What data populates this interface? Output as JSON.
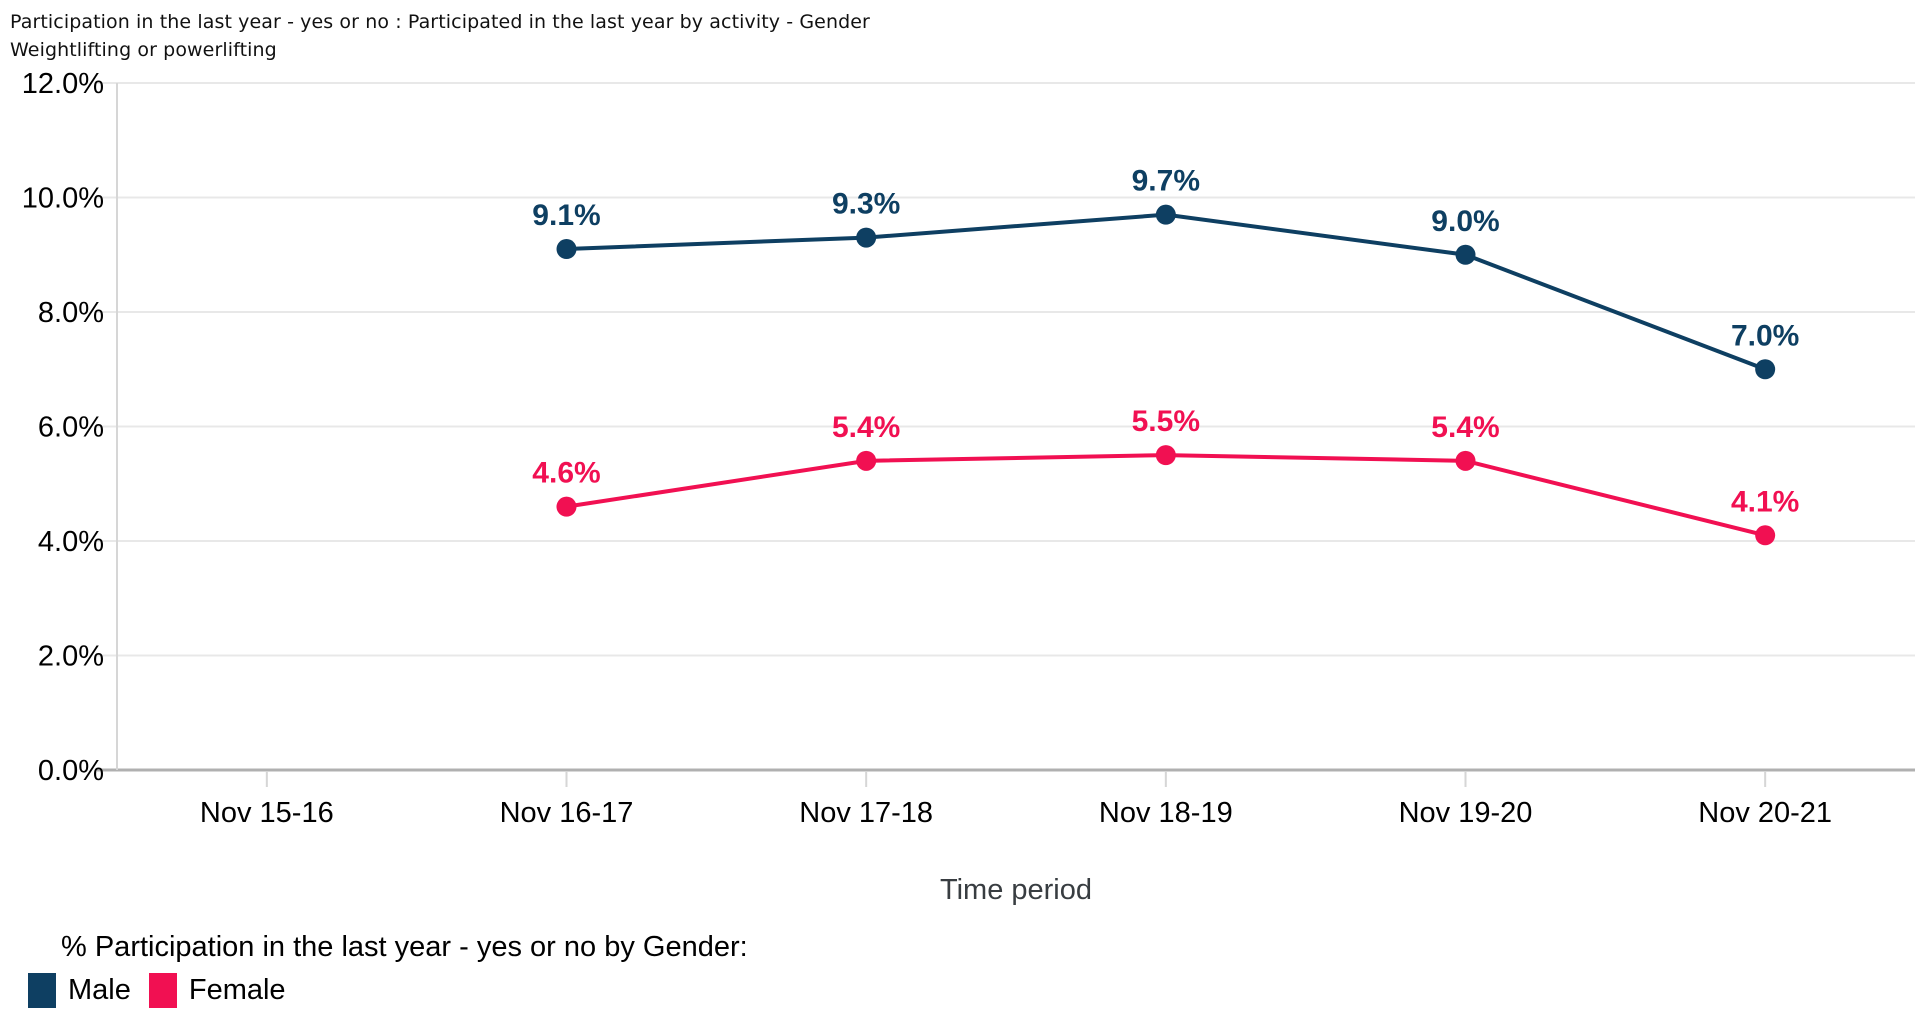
{
  "title": {
    "line1": "Participation in the last year - yes or no : Participated in the last year by activity - Gender",
    "line2": "Weightlifting or powerlifting"
  },
  "chart_data": {
    "type": "line",
    "categories": [
      "Nov 15-16",
      "Nov 16-17",
      "Nov 17-18",
      "Nov 18-19",
      "Nov 19-20",
      "Nov 20-21"
    ],
    "series": [
      {
        "name": "Male",
        "color": "#0E3F62",
        "values": [
          null,
          9.1,
          9.3,
          9.7,
          9.0,
          7.0
        ],
        "labels": [
          "",
          "9.1%",
          "9.3%",
          "9.7%",
          "9.0%",
          "7.0%"
        ]
      },
      {
        "name": "Female",
        "color": "#F11052",
        "values": [
          null,
          4.6,
          5.4,
          5.5,
          5.4,
          4.1
        ],
        "labels": [
          "",
          "4.6%",
          "5.4%",
          "5.5%",
          "5.4%",
          "4.1%"
        ]
      }
    ],
    "xlabel": "Time period",
    "ylabel": "",
    "ylim": [
      0,
      12
    ],
    "ytick_step": 2,
    "ytick_labels": [
      "0.0%",
      "2.0%",
      "4.0%",
      "6.0%",
      "8.0%",
      "10.0%",
      "12.0%"
    ],
    "grid": "horizontal",
    "data_labels": true,
    "legend": {
      "title": "% Participation in the last year - yes or no by Gender:",
      "position": "bottom-left"
    }
  },
  "styles": {
    "gridline_color": "#e8e8e8",
    "baseline_color": "#b0b0b0",
    "axis_border_color": "#d6d6d6",
    "tick_color": "#d6d6d6",
    "tick_label_color": "#000000",
    "xlabel_color": "#383d41",
    "title_color": "#111111",
    "background": "#ffffff"
  }
}
